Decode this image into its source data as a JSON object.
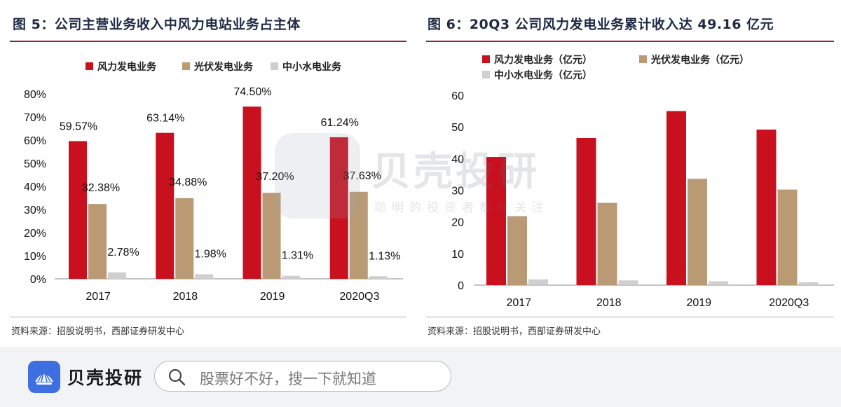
{
  "colors": {
    "wind": "#c8101e",
    "solar": "#b99a74",
    "hydro": "#cfcfcf",
    "title_rule": "#9a1f24",
    "brand_blue": "#3d6fe0"
  },
  "left_panel": {
    "title": "图 5：公司主营业务收入中风力电站业务占主体",
    "source": "资料来源：招股说明书，西部证券研发中心"
  },
  "right_panel": {
    "title": "图 6：20Q3 公司风力发电业务累计收入达 49.16 亿元",
    "source": "资料来源：招股说明书，西部证券研发中心"
  },
  "chart_data": [
    {
      "type": "bar",
      "categories": [
        "2017",
        "2018",
        "2019",
        "2020Q3"
      ],
      "series": [
        {
          "name": "风力发电业务",
          "values": [
            59.57,
            63.14,
            74.5,
            61.24
          ],
          "labels": [
            "59.57%",
            "63.14%",
            "74.50%",
            "61.24%"
          ],
          "color_key": "wind"
        },
        {
          "name": "光伏发电业务",
          "values": [
            32.38,
            34.88,
            37.2,
            37.63
          ],
          "labels": [
            "32.38%",
            "34.88%",
            "37.20%",
            "37.63%"
          ],
          "color_key": "solar"
        },
        {
          "name": "中小水电业务",
          "values": [
            2.78,
            1.98,
            1.31,
            1.13
          ],
          "labels": [
            "2.78%",
            "1.98%",
            "1.31%",
            "1.13%"
          ],
          "color_key": "hydro"
        }
      ],
      "ylim": [
        0,
        80
      ],
      "yticks": [
        "0%",
        "10%",
        "20%",
        "30%",
        "40%",
        "50%",
        "60%",
        "70%",
        "80%"
      ],
      "ytick_values": [
        0,
        10,
        20,
        30,
        40,
        50,
        60,
        70,
        80
      ],
      "grid": false,
      "legend": "top"
    },
    {
      "type": "bar",
      "categories": [
        "2017",
        "2018",
        "2019",
        "2020Q3"
      ],
      "series": [
        {
          "name": "风力发电业务（亿元）",
          "values": [
            40.5,
            46.5,
            55.0,
            49.16
          ],
          "color_key": "wind"
        },
        {
          "name": "光伏发电业务（亿元）",
          "values": [
            21.8,
            26.0,
            33.6,
            30.2
          ],
          "color_key": "solar"
        },
        {
          "name": "中小水电业务（亿元）",
          "values": [
            1.8,
            1.5,
            1.2,
            0.9
          ],
          "color_key": "hydro"
        }
      ],
      "ylim": [
        0,
        60
      ],
      "yticks": [
        "0",
        "10",
        "20",
        "30",
        "40",
        "50",
        "60"
      ],
      "ytick_values": [
        0,
        10,
        20,
        30,
        40,
        50,
        60
      ],
      "grid": false,
      "legend": "top"
    }
  ],
  "watermark": {
    "name": "贝壳投研",
    "slogan": "聪明的投资者都在关注"
  },
  "bottom_bar": {
    "brand": "贝壳投研",
    "search_placeholder": "股票好不好，搜一下就知道",
    "search_icon": "search-icon",
    "logo_icon": "shell-logo-icon"
  }
}
